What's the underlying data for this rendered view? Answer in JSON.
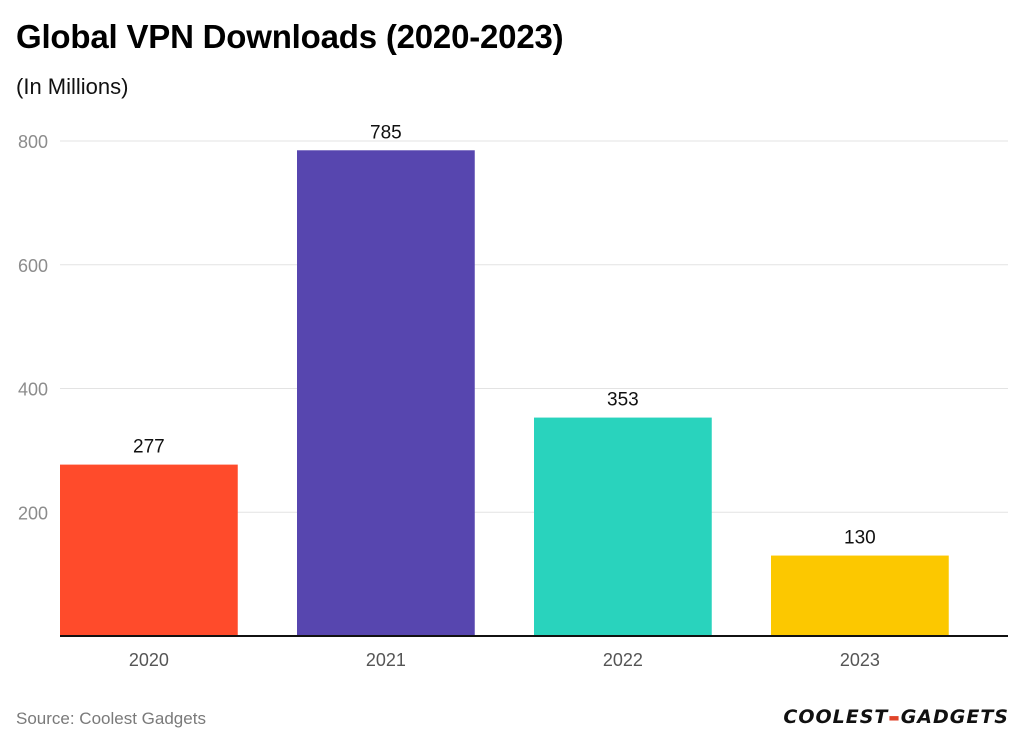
{
  "header": {
    "title": "Global VPN Downloads (2020-2023)",
    "subtitle": "(In Millions)"
  },
  "chart_data": {
    "type": "bar",
    "title": "Global VPN Downloads (2020-2023)",
    "subtitle": "(In Millions)",
    "categories": [
      "2020",
      "2021",
      "2022",
      "2023"
    ],
    "values": [
      277,
      785,
      353,
      130
    ],
    "colors": [
      "#ff4b2b",
      "#5746af",
      "#29d3bd",
      "#fcc800"
    ],
    "yticks": [
      200,
      400,
      600,
      800
    ],
    "ylim": [
      0,
      800
    ],
    "grid": true,
    "xlabel": "",
    "ylabel": ""
  },
  "footer": {
    "source": "Source: Coolest Gadgets",
    "logo_left": "COOLEST",
    "logo_right": "GADGETS"
  }
}
